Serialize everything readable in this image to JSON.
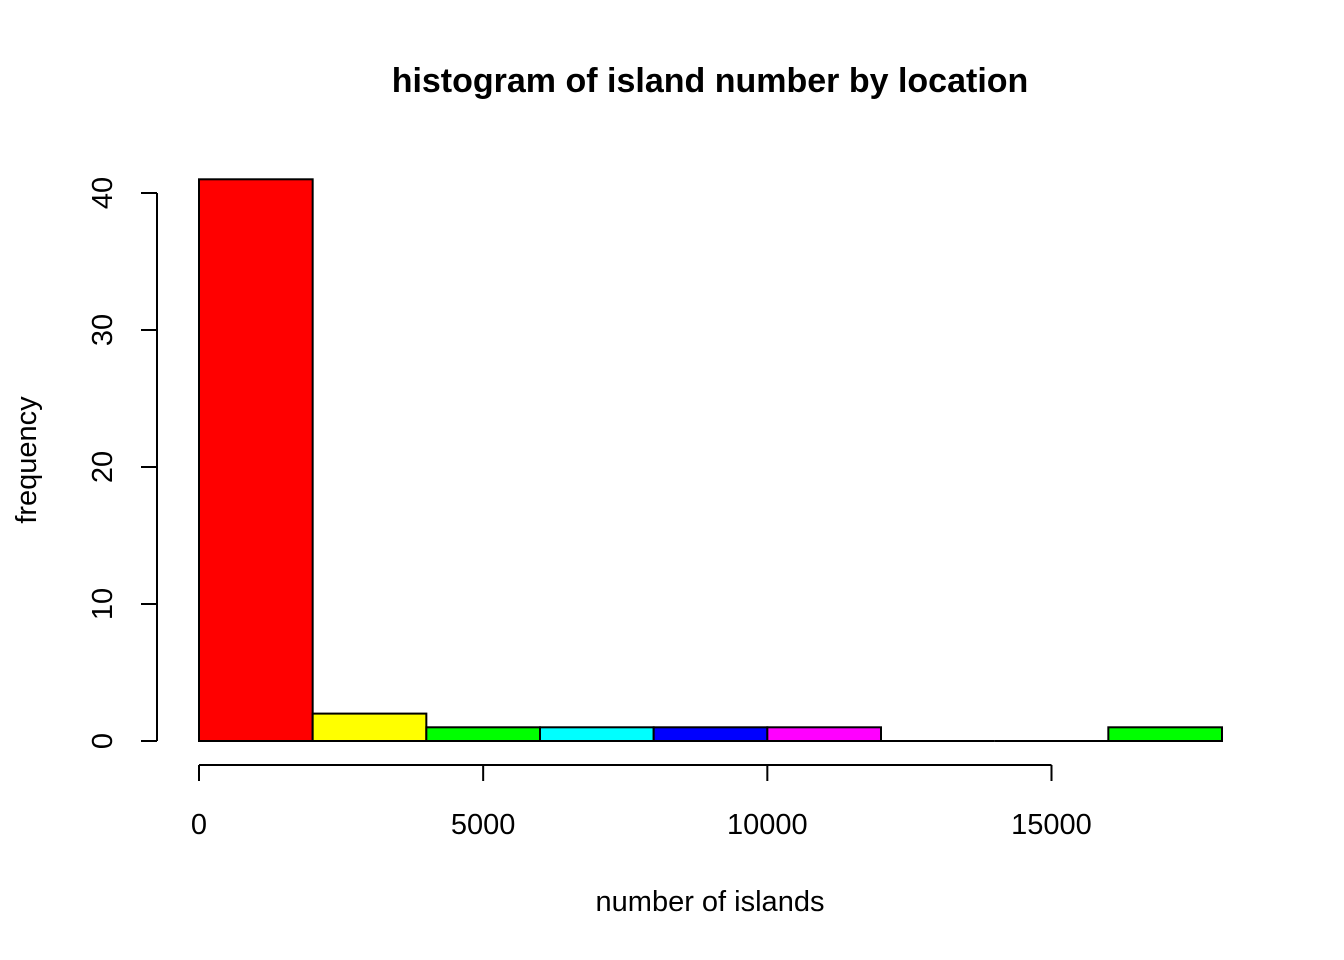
{
  "chart_data": {
    "type": "bar",
    "title": "histogram of island number by location",
    "xlabel": "number of islands",
    "ylabel": "frequency",
    "bins": [
      {
        "start": 0,
        "end": 2000,
        "count": 41,
        "color": "#ff0000"
      },
      {
        "start": 2000,
        "end": 4000,
        "count": 2,
        "color": "#ffff00"
      },
      {
        "start": 4000,
        "end": 6000,
        "count": 1,
        "color": "#00ff00"
      },
      {
        "start": 6000,
        "end": 8000,
        "count": 1,
        "color": "#00ffff"
      },
      {
        "start": 8000,
        "end": 10000,
        "count": 1,
        "color": "#0000ff"
      },
      {
        "start": 10000,
        "end": 12000,
        "count": 1,
        "color": "#ff00ff"
      },
      {
        "start": 12000,
        "end": 14000,
        "count": 0,
        "color": "#ff0000"
      },
      {
        "start": 14000,
        "end": 16000,
        "count": 0,
        "color": "#ffff00"
      },
      {
        "start": 16000,
        "end": 18000,
        "count": 1,
        "color": "#00ff00"
      }
    ],
    "xticks": [
      "0",
      "5000",
      "10000",
      "15000"
    ],
    "yticks": [
      "0",
      "10",
      "20",
      "30",
      "40"
    ],
    "xlim": [
      0,
      18000
    ],
    "ylim": [
      0,
      40
    ],
    "grid": false
  }
}
